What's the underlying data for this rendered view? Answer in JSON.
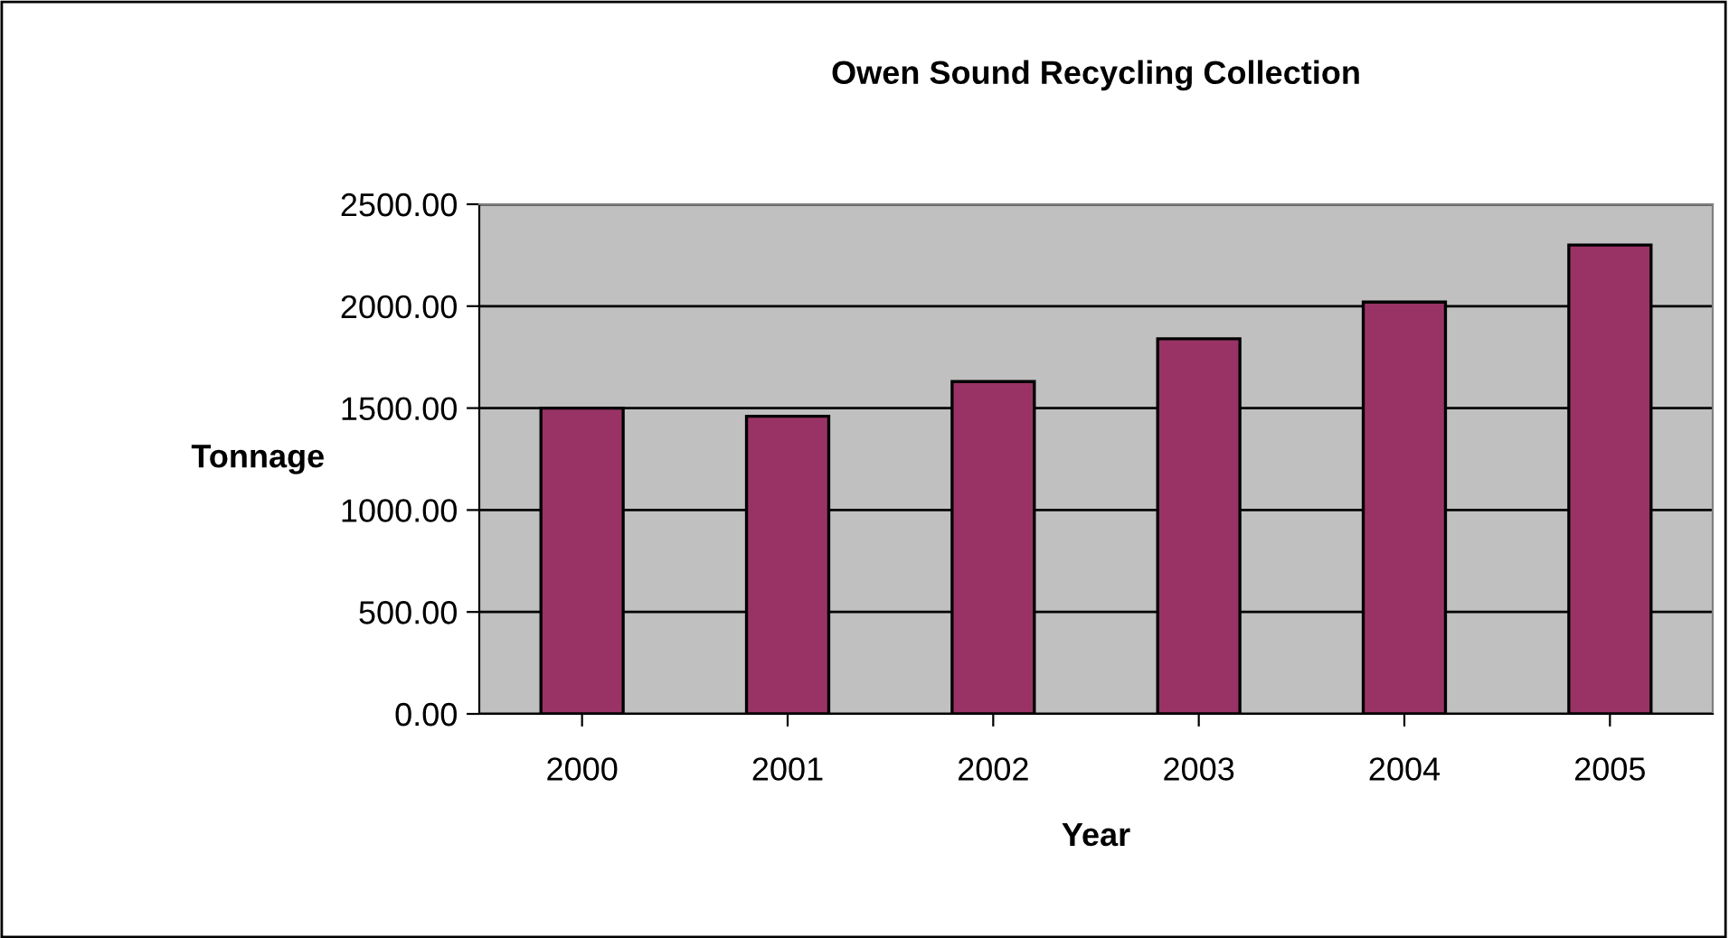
{
  "chart_data": {
    "type": "bar",
    "title": "Owen Sound Recycling Collection",
    "xlabel": "Year",
    "ylabel": "Tonnage",
    "categories": [
      "2000",
      "2001",
      "2002",
      "2003",
      "2004",
      "2005"
    ],
    "series": [
      {
        "color": "#993366",
        "values": [
          1500,
          1460,
          1630,
          1840,
          2020,
          2300
        ]
      }
    ],
    "ylim": [
      0,
      2500
    ],
    "yticks": [
      {
        "value": 0,
        "label": "0.00"
      },
      {
        "value": 500,
        "label": "500.00"
      },
      {
        "value": 1000,
        "label": "1000.00"
      },
      {
        "value": 1500,
        "label": "1500.00"
      },
      {
        "value": 2000,
        "label": "2000.00"
      },
      {
        "value": 2500,
        "label": "2500.00"
      }
    ],
    "grid": "y",
    "legend": false
  }
}
